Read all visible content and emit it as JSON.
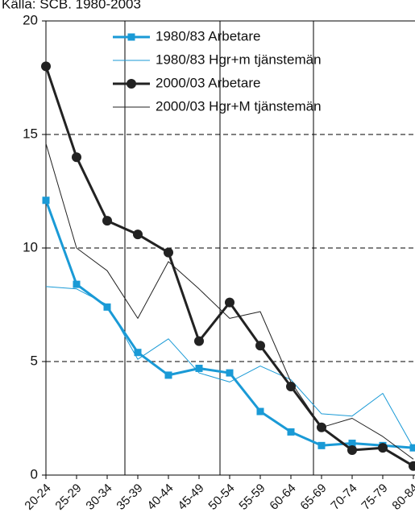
{
  "chart_data": {
    "type": "line",
    "title": "Källa: SCB. 1980-2003",
    "categories": [
      "20-24",
      "25-29",
      "30-34",
      "35-39",
      "40-44",
      "45-49",
      "50-54",
      "55-59",
      "60-64",
      "65-69",
      "70-74",
      "75-79",
      "80-84"
    ],
    "series": [
      {
        "name": "1980/83 Arbetare",
        "color": "#1a9ad6",
        "line_width": 3,
        "marker": "square",
        "values": [
          12.1,
          8.4,
          7.4,
          5.4,
          4.4,
          4.7,
          4.5,
          2.8,
          1.9,
          1.3,
          1.4,
          1.3,
          1.2
        ]
      },
      {
        "name": "1980/83 Hgr+m tjänstemän",
        "color": "#1a9ad6",
        "line_width": 1,
        "marker": "none",
        "values": [
          8.3,
          8.2,
          7.5,
          5.1,
          6.0,
          4.5,
          4.1,
          4.8,
          4.2,
          2.7,
          2.6,
          3.6,
          1.2
        ]
      },
      {
        "name": "2000/03 Arbetare",
        "color": "#222222",
        "line_width": 3,
        "marker": "circle",
        "values": [
          18.0,
          14.0,
          11.2,
          10.6,
          9.8,
          5.9,
          7.6,
          5.7,
          3.9,
          2.1,
          1.1,
          1.2,
          0.4
        ]
      },
      {
        "name": "2000/03 Hgr+M tjänstemän",
        "color": "#222222",
        "line_width": 1,
        "marker": "none",
        "values": [
          14.6,
          10.0,
          9.0,
          6.9,
          9.4,
          8.2,
          6.9,
          7.2,
          4.1,
          2.1,
          2.5,
          1.7,
          0.7
        ]
      }
    ],
    "ylim": [
      0,
      20
    ],
    "yticks": [
      0,
      5,
      10,
      15,
      20
    ],
    "grid": true
  }
}
